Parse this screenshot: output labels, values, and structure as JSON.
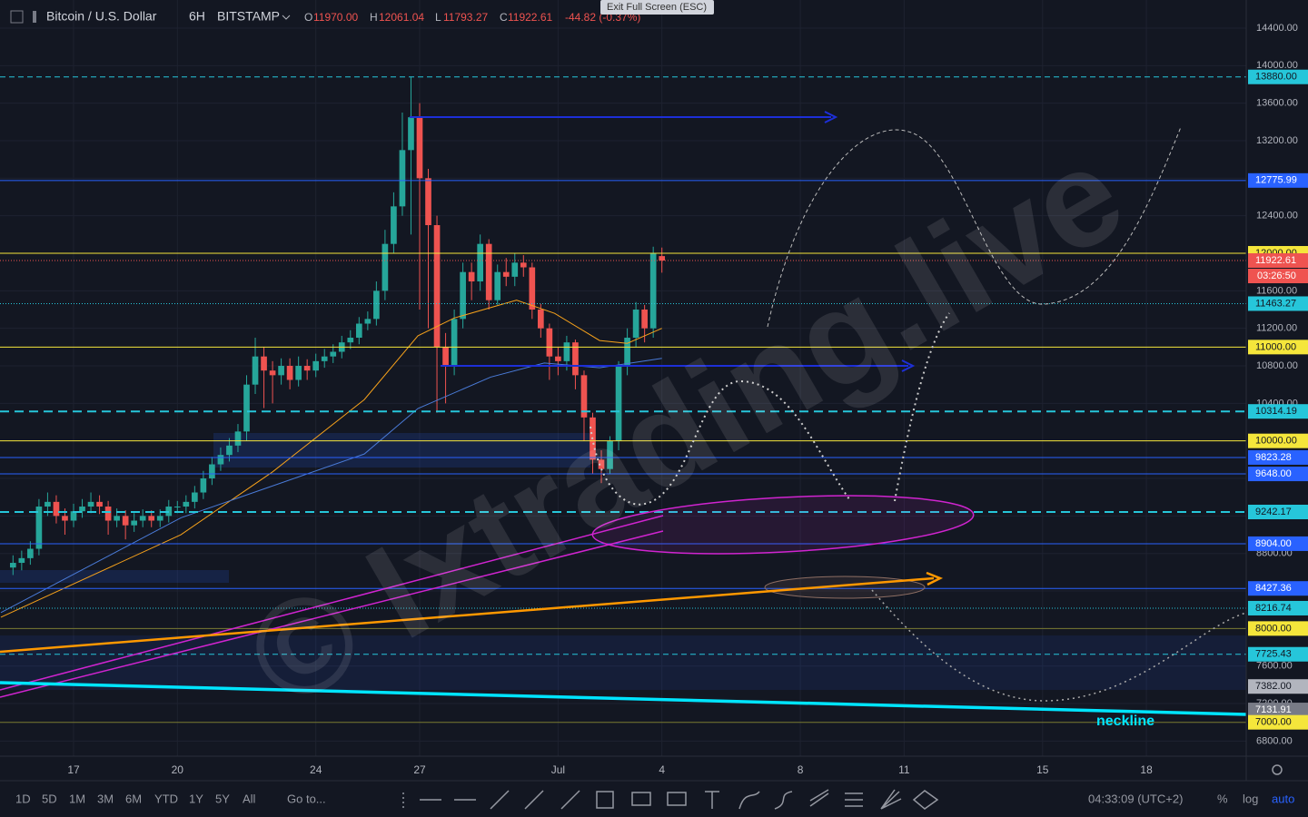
{
  "header": {
    "symbol": "Bitcoin / U.S. Dollar",
    "interval": "6H",
    "exchange": "BITSTAMP",
    "ohlc": [
      {
        "key": "O",
        "value": "11970.00"
      },
      {
        "key": "H",
        "value": "12061.04"
      },
      {
        "key": "L",
        "value": "11793.27"
      },
      {
        "key": "C",
        "value": "11922.61"
      }
    ],
    "change": "-44.82 (-0.37%)"
  },
  "tooltip": "Exit Full Screen (ESC)",
  "watermark": "© Ixtrading.live",
  "annotation": "neckline",
  "chart_data": {
    "type": "candlestick",
    "up_color": "#26a69a",
    "down_color": "#ef5350",
    "grid": true,
    "xlim": [
      14.874,
      50.885
    ],
    "ylim": [
      6639,
      14700
    ],
    "xticks": [
      17,
      20,
      24,
      27,
      {
        "value": 31,
        "label": "Jul"
      },
      {
        "value": 34,
        "label": "4"
      },
      {
        "value": 38,
        "label": "8"
      },
      {
        "value": 41,
        "label": "11"
      },
      {
        "value": 45,
        "label": "15"
      },
      {
        "value": 48,
        "label": "18"
      }
    ],
    "yticks": [
      {
        "value": 6800,
        "label": "6800.00"
      },
      {
        "value": 7200,
        "label": "7200.00"
      },
      {
        "value": 7600,
        "label": "7600.00"
      },
      {
        "value": 8000,
        "label": "8000.00"
      },
      {
        "value": 8400,
        "label": "8400.00"
      },
      {
        "value": 8800,
        "label": "8800.00"
      },
      {
        "value": 9200,
        "label": "9200.00"
      },
      {
        "value": 9600,
        "label": "9600.00"
      },
      {
        "value": 10000,
        "label": "10000.00"
      },
      {
        "value": 10400,
        "label": "10400.00"
      },
      {
        "value": 10800,
        "label": "10800.00"
      },
      {
        "value": 11200,
        "label": "11200.00"
      },
      {
        "value": 11600,
        "label": "11600.00"
      },
      {
        "value": 12000,
        "label": "12000.00"
      },
      {
        "value": 12400,
        "label": "12400.00"
      },
      {
        "value": 12800,
        "label": "12800.00"
      },
      {
        "value": 13200,
        "label": "13200.00"
      },
      {
        "value": 13600,
        "label": "13600.00"
      },
      {
        "value": 14000,
        "label": "14000.00"
      },
      {
        "value": 14400,
        "label": "14400.00"
      }
    ],
    "x": [
      15.25,
      15.5,
      15.75,
      16,
      16.25,
      16.5,
      16.75,
      17,
      17.25,
      17.5,
      17.75,
      18,
      18.25,
      18.5,
      18.75,
      19,
      19.25,
      19.5,
      19.75,
      20,
      20.25,
      20.5,
      20.75,
      21,
      21.25,
      21.5,
      21.75,
      22,
      22.25,
      22.5,
      22.75,
      23,
      23.25,
      23.5,
      23.75,
      24,
      24.25,
      24.5,
      24.75,
      25,
      25.25,
      25.5,
      25.75,
      26,
      26.25,
      26.5,
      26.75,
      27,
      27.25,
      27.5,
      27.75,
      28,
      28.25,
      28.5,
      28.75,
      29,
      29.25,
      29.5,
      29.75,
      30,
      30.25,
      30.5,
      30.75,
      31,
      31.25,
      31.5,
      31.75,
      32,
      32.25,
      32.5,
      32.75,
      33,
      33.25,
      33.5,
      33.75,
      34
    ],
    "open": [
      8650,
      8700,
      8750,
      8850,
      9300,
      9350,
      9200,
      9150,
      9250,
      9300,
      9350,
      9300,
      9150,
      9200,
      9100,
      9150,
      9200,
      9150,
      9200,
      9300,
      9300,
      9350,
      9450,
      9600,
      9750,
      9850,
      9950,
      10100,
      10600,
      10900,
      10750,
      10700,
      10800,
      10650,
      10800,
      10750,
      10850,
      10900,
      10950,
      11050,
      11100,
      11250,
      11300,
      11600,
      12100,
      12500,
      13100,
      13450,
      12800,
      12300,
      11000,
      10800,
      11300,
      11800,
      11700,
      12100,
      11500,
      11800,
      11750,
      11900,
      11850,
      11400,
      11200,
      10900,
      10850,
      11050,
      10700,
      10250,
      9800,
      9700,
      10000,
      10800,
      11100,
      11400,
      11200,
      11970
    ],
    "high": [
      8780,
      8830,
      8930,
      9380,
      9450,
      9420,
      9280,
      9330,
      9380,
      9450,
      9420,
      9360,
      9280,
      9260,
      9230,
      9270,
      9260,
      9270,
      9370,
      9360,
      9420,
      9520,
      9680,
      9830,
      9930,
      10030,
      10180,
      10700,
      11100,
      11000,
      10850,
      10880,
      10880,
      10900,
      10870,
      10930,
      10980,
      11030,
      11120,
      11180,
      11320,
      11380,
      11700,
      12250,
      12650,
      13500,
      13880,
      13600,
      12900,
      12400,
      11150,
      11400,
      11900,
      11900,
      12200,
      12150,
      11880,
      11950,
      12000,
      11980,
      11900,
      11460,
      11250,
      11000,
      11120,
      11080,
      10750,
      10300,
      9900,
      10050,
      10850,
      11200,
      11480,
      11450,
      12070,
      12061.04
    ],
    "low": [
      8570,
      8620,
      8680,
      8780,
      9200,
      9120,
      9000,
      9080,
      9180,
      9230,
      9220,
      9000,
      9080,
      8950,
      9030,
      9080,
      9080,
      9080,
      9130,
      9230,
      9230,
      9280,
      9380,
      9530,
      9680,
      9780,
      9880,
      10000,
      10500,
      10350,
      10400,
      10600,
      10550,
      10580,
      10650,
      10680,
      10780,
      10830,
      10880,
      10980,
      11030,
      11180,
      11230,
      11500,
      12000,
      12400,
      12200,
      11400,
      11200,
      10300,
      10400,
      10700,
      11200,
      11500,
      11600,
      11400,
      11450,
      11650,
      11650,
      11750,
      11300,
      11100,
      10650,
      10700,
      10750,
      10550,
      10000,
      9650,
      9550,
      9650,
      9900,
      10700,
      11000,
      11050,
      11100,
      11793.27
    ],
    "close": [
      8700,
      8750,
      8850,
      9300,
      9350,
      9200,
      9150,
      9250,
      9300,
      9350,
      9300,
      9150,
      9200,
      9100,
      9150,
      9200,
      9150,
      9200,
      9300,
      9300,
      9350,
      9450,
      9600,
      9750,
      9850,
      9950,
      10100,
      10600,
      10900,
      10750,
      10700,
      10800,
      10650,
      10800,
      10750,
      10850,
      10900,
      10950,
      11050,
      11100,
      11250,
      11300,
      11600,
      12100,
      12500,
      13100,
      13450,
      12800,
      12300,
      11000,
      10800,
      11300,
      11800,
      11700,
      12100,
      11500,
      11800,
      11750,
      11900,
      11850,
      11400,
      11200,
      10900,
      10850,
      11050,
      10700,
      10250,
      9800,
      9700,
      10000,
      10800,
      11100,
      11400,
      11200,
      12000,
      11922.61
    ],
    "series": [
      {
        "name": "MA fast",
        "color": "#f7a21b",
        "x": [
          14.9,
          20.1,
          22.75,
          25.4,
          26.95,
          28,
          29.8,
          30.9,
          32.2,
          33,
          34
        ],
        "values": [
          8120,
          9000,
          9670,
          10440,
          11120,
          11310,
          11500,
          11360,
          11070,
          11040,
          11200
        ]
      },
      {
        "name": "MA slow",
        "color": "#4a7bd8",
        "x": [
          14.9,
          20.1,
          25.4,
          26.95,
          29.05,
          30.6,
          32.2,
          34
        ],
        "values": [
          8170,
          9180,
          9860,
          10345,
          10680,
          10830,
          10780,
          10880
        ]
      }
    ],
    "levels": [
      {
        "price": 13880,
        "label": "13880.00",
        "color": "#26c6da",
        "style": "dashed"
      },
      {
        "price": 12775.99,
        "label": "12775.99",
        "color": "#2962ff",
        "style": "solid"
      },
      {
        "price": 12000,
        "label": "12000.00",
        "color": "#f5e63b",
        "style": "solid"
      },
      {
        "price": 11922.61,
        "label": "11922.61",
        "color": "#ef5350",
        "style": "dotted"
      },
      {
        "price": 11463.27,
        "label": "11463.27",
        "color": "#26c6da",
        "style": "dotted"
      },
      {
        "price": 11000,
        "label": "11000.00",
        "color": "#f5e63b",
        "style": "solid"
      },
      {
        "price": 10314.19,
        "label": "10314.19",
        "color": "#26c6da",
        "style": "thick"
      },
      {
        "price": 10000,
        "label": "10000.00",
        "color": "#f5e63b",
        "style": "solid"
      },
      {
        "price": 9823.28,
        "label": "9823.28",
        "color": "#2962ff",
        "style": "solid"
      },
      {
        "price": 9648,
        "label": "9648.00",
        "color": "#2962ff",
        "style": "solid"
      },
      {
        "price": 9242.17,
        "label": "9242.17",
        "color": "#26c6da",
        "style": "thick"
      },
      {
        "price": 8904,
        "label": "8904.00",
        "color": "#2962ff",
        "style": "solid"
      },
      {
        "price": 8427.36,
        "label": "8427.36",
        "color": "#2962ff",
        "style": "solid"
      },
      {
        "price": 8216.74,
        "label": "8216.74",
        "color": "#26c6da",
        "style": "dotted"
      },
      {
        "price": 8000,
        "label": "8000.00",
        "color": "#f5e63b",
        "style": "olive"
      },
      {
        "price": 7725.43,
        "label": "7725.43",
        "color": "#26c6da",
        "style": "dashed"
      },
      {
        "price": 7382,
        "label": "7382.00",
        "color": "#b2b5be",
        "style": "none"
      },
      {
        "price": 7131.91,
        "label": "7131.91",
        "color": "#787b86",
        "style": "none"
      },
      {
        "price": 7000,
        "label": "7000.00",
        "color": "#f5e63b",
        "style": "olive"
      }
    ],
    "countdown": "03:26:50"
  },
  "toolbar": {
    "ranges": [
      "1D",
      "5D",
      "1M",
      "3M",
      "6M",
      "YTD",
      "1Y",
      "5Y",
      "All"
    ],
    "goto": "Go to...",
    "clock": "04:33:09 (UTC+2)",
    "percent": "%",
    "log": "log",
    "auto": "auto"
  }
}
